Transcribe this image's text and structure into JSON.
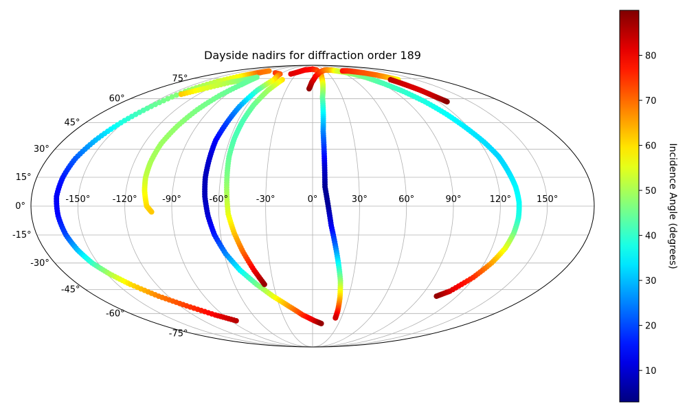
{
  "chart_data": {
    "type": "scatter",
    "projection": "mollweide",
    "title": "Dayside nadirs for diffraction order 189",
    "xlabel": "",
    "ylabel": "",
    "grid": true,
    "xticks": [
      "-150°",
      "-120°",
      "-90°",
      "-60°",
      "-30°",
      "0°",
      "30°",
      "60°",
      "90°",
      "120°",
      "150°"
    ],
    "xtick_values": [
      -150,
      -120,
      -90,
      -60,
      -30,
      0,
      30,
      60,
      90,
      120,
      150
    ],
    "yticks": [
      "-75°",
      "-60°",
      "-45°",
      "-30°",
      "-15°",
      "0°",
      "15°",
      "30°",
      "45°",
      "60°",
      "75°"
    ],
    "ytick_values": [
      -75,
      -60,
      -45,
      -30,
      -15,
      0,
      15,
      30,
      45,
      60,
      75
    ],
    "xlim": [
      -180,
      180
    ],
    "ylim": [
      -90,
      90
    ],
    "colorbar": {
      "label": "Incidence Angle (degrees)",
      "colormap": "jet",
      "min": 3,
      "max": 90,
      "ticks": [
        10,
        20,
        30,
        40,
        50,
        60,
        70,
        80
      ]
    },
    "series": [
      {
        "points": [
          [
            -99,
            82,
            68
          ],
          [
            -110,
            80,
            70
          ],
          [
            -120,
            77,
            58
          ],
          [
            -132,
            72,
            52
          ],
          [
            -140,
            65,
            48
          ],
          [
            -146,
            55,
            44
          ],
          [
            -152,
            45,
            38
          ],
          [
            -157,
            35,
            30
          ],
          [
            -161,
            25,
            22
          ],
          [
            -163,
            15,
            16
          ],
          [
            -164,
            5,
            13
          ],
          [
            -163,
            -5,
            14
          ],
          [
            -161,
            -15,
            20
          ],
          [
            -158,
            -23,
            30
          ],
          [
            -154,
            -30,
            40
          ],
          [
            -148,
            -36,
            50
          ],
          [
            -140,
            -42,
            60
          ],
          [
            -128,
            -49,
            68
          ],
          [
            -114,
            -55,
            74
          ],
          [
            -98,
            -61,
            80
          ],
          [
            -84,
            -65,
            85
          ]
        ]
      },
      {
        "points": [
          [
            -138,
            63,
            62
          ],
          [
            -126,
            67,
            55
          ],
          [
            -110,
            72,
            50
          ],
          [
            -97,
            74,
            46
          ],
          [
            -88,
            76,
            45
          ],
          [
            -90,
            70,
            44
          ],
          [
            -96,
            62,
            45
          ],
          [
            -101,
            53,
            46
          ],
          [
            -105,
            43,
            48
          ],
          [
            -108,
            33,
            49
          ],
          [
            -109,
            23,
            50
          ],
          [
            -109,
            15,
            52
          ],
          [
            -108,
            8,
            56
          ],
          [
            -106,
            0,
            60
          ],
          [
            -103,
            -3,
            62
          ]
        ]
      },
      {
        "points": [
          [
            -73,
            80,
            75
          ],
          [
            -60,
            79,
            72
          ],
          [
            -56,
            74,
            60
          ],
          [
            -62,
            66,
            42
          ],
          [
            -66,
            55,
            28
          ],
          [
            -68,
            45,
            20
          ],
          [
            -70,
            35,
            14
          ],
          [
            -70,
            25,
            10
          ],
          [
            -70,
            15,
            8
          ],
          [
            -69,
            5,
            8
          ],
          [
            -67,
            -5,
            10
          ],
          [
            -64,
            -15,
            16
          ],
          [
            -59,
            -25,
            25
          ],
          [
            -52,
            -34,
            35
          ],
          [
            -43,
            -42,
            45
          ],
          [
            -33,
            -49,
            55
          ],
          [
            -22,
            -55,
            65
          ],
          [
            -10,
            -61,
            75
          ],
          [
            2,
            -65,
            82
          ],
          [
            10,
            -67,
            88
          ]
        ]
      },
      {
        "points": [
          [
            -44,
            74,
            60
          ],
          [
            -50,
            66,
            50
          ],
          [
            -54,
            56,
            45
          ],
          [
            -56,
            46,
            42
          ],
          [
            -57,
            36,
            42
          ],
          [
            -57,
            26,
            44
          ],
          [
            -56,
            16,
            46
          ],
          [
            -55,
            6,
            50
          ],
          [
            -54,
            -4,
            55
          ],
          [
            -51,
            -14,
            62
          ],
          [
            -47,
            -24,
            70
          ],
          [
            -42,
            -34,
            80
          ],
          [
            -37,
            -42,
            88
          ]
        ]
      },
      {
        "points": [
          [
            -40,
            79,
            82
          ],
          [
            -20,
            83,
            80
          ],
          [
            0,
            84,
            78
          ],
          [
            10,
            83,
            75
          ],
          [
            15,
            78,
            68
          ],
          [
            13,
            70,
            55
          ],
          [
            10,
            61,
            45
          ],
          [
            9,
            50,
            35
          ],
          [
            8,
            40,
            26
          ],
          [
            8,
            30,
            18
          ],
          [
            8,
            20,
            10
          ],
          [
            8,
            10,
            5
          ],
          [
            10,
            0,
            5
          ],
          [
            12,
            -10,
            12
          ],
          [
            15,
            -20,
            22
          ],
          [
            18,
            -30,
            35
          ],
          [
            21,
            -40,
            48
          ],
          [
            23,
            -50,
            62
          ],
          [
            24,
            -58,
            75
          ],
          [
            24,
            -63,
            83
          ]
        ]
      },
      {
        "points": [
          [
            -4,
            67,
            89
          ],
          [
            -1,
            72,
            85
          ],
          [
            5,
            77,
            80
          ],
          [
            15,
            81,
            75
          ],
          [
            30,
            83,
            70
          ],
          [
            45,
            83,
            65
          ],
          [
            55,
            82,
            55
          ],
          [
            65,
            81,
            52
          ],
          [
            75,
            79,
            48
          ],
          [
            84,
            76,
            45
          ],
          [
            92,
            71,
            42
          ],
          [
            100,
            65,
            40
          ],
          [
            107,
            58,
            38
          ],
          [
            113,
            50,
            36
          ],
          [
            118,
            42,
            34
          ],
          [
            123,
            34,
            33
          ],
          [
            127,
            26,
            32
          ],
          [
            129,
            18,
            33
          ],
          [
            131,
            10,
            35
          ],
          [
            132,
            2,
            36
          ],
          [
            132,
            -6,
            38
          ],
          [
            131,
            -14,
            45
          ],
          [
            129,
            -22,
            55
          ],
          [
            125,
            -30,
            65
          ],
          [
            119,
            -38,
            75
          ],
          [
            110,
            -46,
            82
          ],
          [
            103,
            -49,
            88
          ]
        ]
      },
      {
        "points": [
          [
            68,
            82,
            78
          ],
          [
            80,
            82,
            76
          ],
          [
            92,
            81,
            74
          ],
          [
            102,
            80,
            72
          ],
          [
            112,
            78,
            70
          ],
          [
            118,
            76,
            65
          ],
          [
            124,
            74,
            58
          ]
        ]
      },
      {
        "points": [
          [
            113,
            74,
            85
          ],
          [
            117,
            70,
            83
          ],
          [
            121,
            66,
            82
          ],
          [
            124,
            62,
            84
          ],
          [
            127,
            59,
            87
          ],
          [
            128,
            58,
            89
          ]
        ]
      }
    ]
  }
}
